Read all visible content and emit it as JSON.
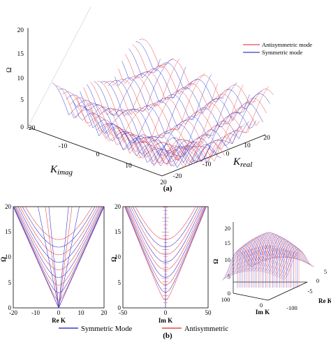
{
  "colors": {
    "symmetric": "#3a3acf",
    "antisymmetric": "#e8494f",
    "axis": "#000000"
  },
  "labels": {
    "panel_a": "(a)",
    "panel_b": "(b)",
    "z_axis": "Ω",
    "kimag": "K",
    "kimag_sub": "imag",
    "kreal": "K",
    "kreal_sub": "real",
    "re_k": "Re K",
    "im_k": "Im K"
  },
  "chart_data": [
    {
      "id": "a",
      "type": "surface3d",
      "legend": {
        "placement": "top-right",
        "entries": [
          "Antisymmetric mode",
          "Symmetric mode"
        ]
      },
      "zlim": [
        0,
        20
      ],
      "z_ticks": [
        "0",
        "5",
        "10",
        "15",
        "20"
      ],
      "kimag_ticks": [
        "-20",
        "-10",
        "0",
        "10",
        "20"
      ],
      "kreal_ticks": [
        "-20",
        "-10",
        "0",
        "10",
        "20"
      ],
      "zlabel": "Ω",
      "series": [
        {
          "name": "Antisymmetric mode"
        },
        {
          "name": "Symmetric mode"
        }
      ]
    },
    {
      "id": "b1",
      "type": "line",
      "xlabel": "Re K",
      "ylabel": "Ω",
      "xlim": [
        -20,
        20
      ],
      "ylim": [
        0,
        20
      ],
      "x_ticks": [
        "-20",
        "-10",
        "0",
        "10",
        "20"
      ],
      "y_ticks": [
        "0",
        "5",
        "10",
        "15",
        "20"
      ],
      "series": [
        {
          "name": "Symmetric Mode",
          "branches": [
            [
              0,
              0
            ],
            [
              3,
              3
            ],
            [
              6,
              6
            ],
            [
              9,
              9
            ],
            [
              12,
              12
            ]
          ]
        },
        {
          "name": "Antisymmetric",
          "branches": [
            [
              0,
              0
            ],
            [
              1.5,
              1.5
            ],
            [
              4.5,
              4.5
            ],
            [
              7.5,
              7.5
            ],
            [
              10.5,
              10.5
            ],
            [
              13.5,
              13.5
            ]
          ]
        }
      ]
    },
    {
      "id": "b2",
      "type": "line",
      "xlabel": "Im K",
      "ylabel": "Ω",
      "xlim": [
        -50,
        50
      ],
      "ylim": [
        0,
        20
      ],
      "x_ticks": [
        "-50",
        "0",
        "50"
      ],
      "y_ticks": [
        "0",
        "5",
        "10",
        "15",
        "20"
      ],
      "series": [
        {
          "name": "Symmetric Mode",
          "cutoffs": [
            3,
            6,
            9,
            12
          ]
        },
        {
          "name": "Antisymmetric",
          "cutoffs": [
            1.5,
            4.5,
            7.5,
            10.5,
            13.5
          ]
        }
      ]
    },
    {
      "id": "b3",
      "type": "surface3d",
      "xlabel": "Im K",
      "ylabel": "Re K",
      "zlabel": "Ω",
      "z_ticks": [
        "0",
        "5",
        "10",
        "15",
        "20"
      ],
      "imk_ticks": [
        "100",
        "0",
        "-100"
      ],
      "rek_ticks": [
        "5",
        "0",
        "-5"
      ]
    }
  ],
  "bottom_legend": {
    "placement": "bottom-center",
    "entries": [
      "Symmetric Mode",
      "Antisymmetric"
    ]
  }
}
